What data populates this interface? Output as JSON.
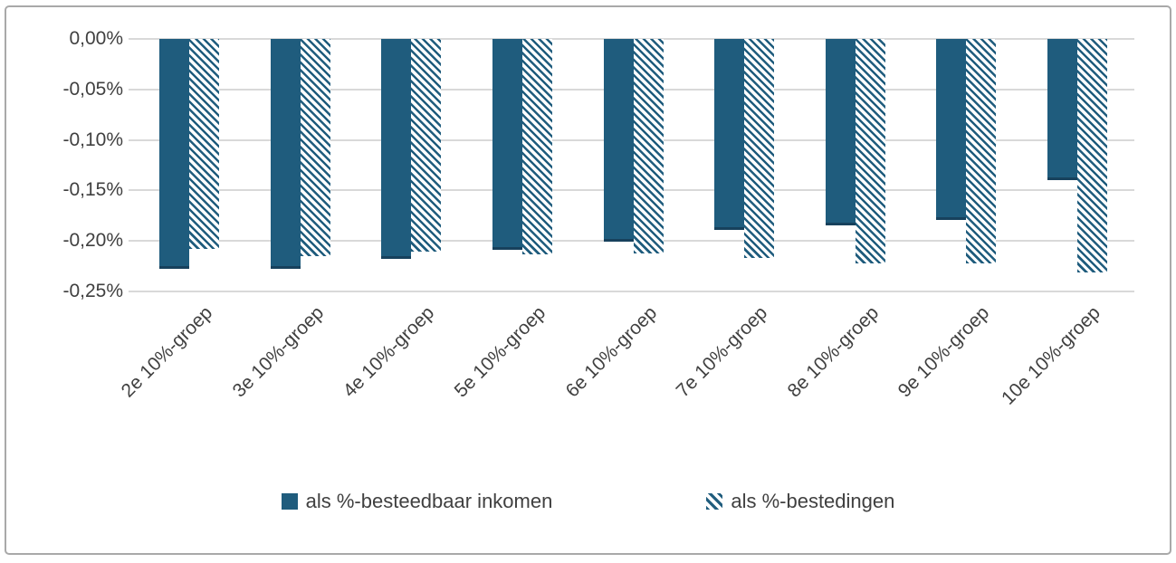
{
  "chart_data": {
    "type": "bar",
    "title": "",
    "xlabel": "",
    "ylabel": "",
    "categories": [
      "2e 10%-groep",
      "3e 10%-groep",
      "4e 10%-groep",
      "5e 10%-groep",
      "6e 10%-groep",
      "7e 10%-groep",
      "8e 10%-groep",
      "9e 10%-groep",
      "10e 10%-groep"
    ],
    "series": [
      {
        "name": "als %-besteedbaar inkomen",
        "style": "solid",
        "values": [
          -0.228,
          -0.228,
          -0.218,
          -0.209,
          -0.201,
          -0.189,
          -0.185,
          -0.179,
          -0.14
        ]
      },
      {
        "name": "als %-bestedingen",
        "style": "hatched",
        "values": [
          -0.208,
          -0.215,
          -0.211,
          -0.213,
          -0.212,
          -0.217,
          -0.222,
          -0.222,
          -0.231
        ]
      }
    ],
    "ylim": [
      -0.25,
      0
    ],
    "ytick_step": 0.05,
    "ytick_labels": [
      "0,00%",
      "-0,05%",
      "-0,10%",
      "-0,15%",
      "-0,20%",
      "-0,25%"
    ],
    "grid": true,
    "legend_position": "bottom-center",
    "colors": {
      "bar": "#1F5C7D",
      "bar_bottom_edge": "#17415C",
      "gridline": "#D9D9D9",
      "text": "#404040",
      "frame_border": "#A9A9A9",
      "background": "#FFFFFF"
    }
  }
}
